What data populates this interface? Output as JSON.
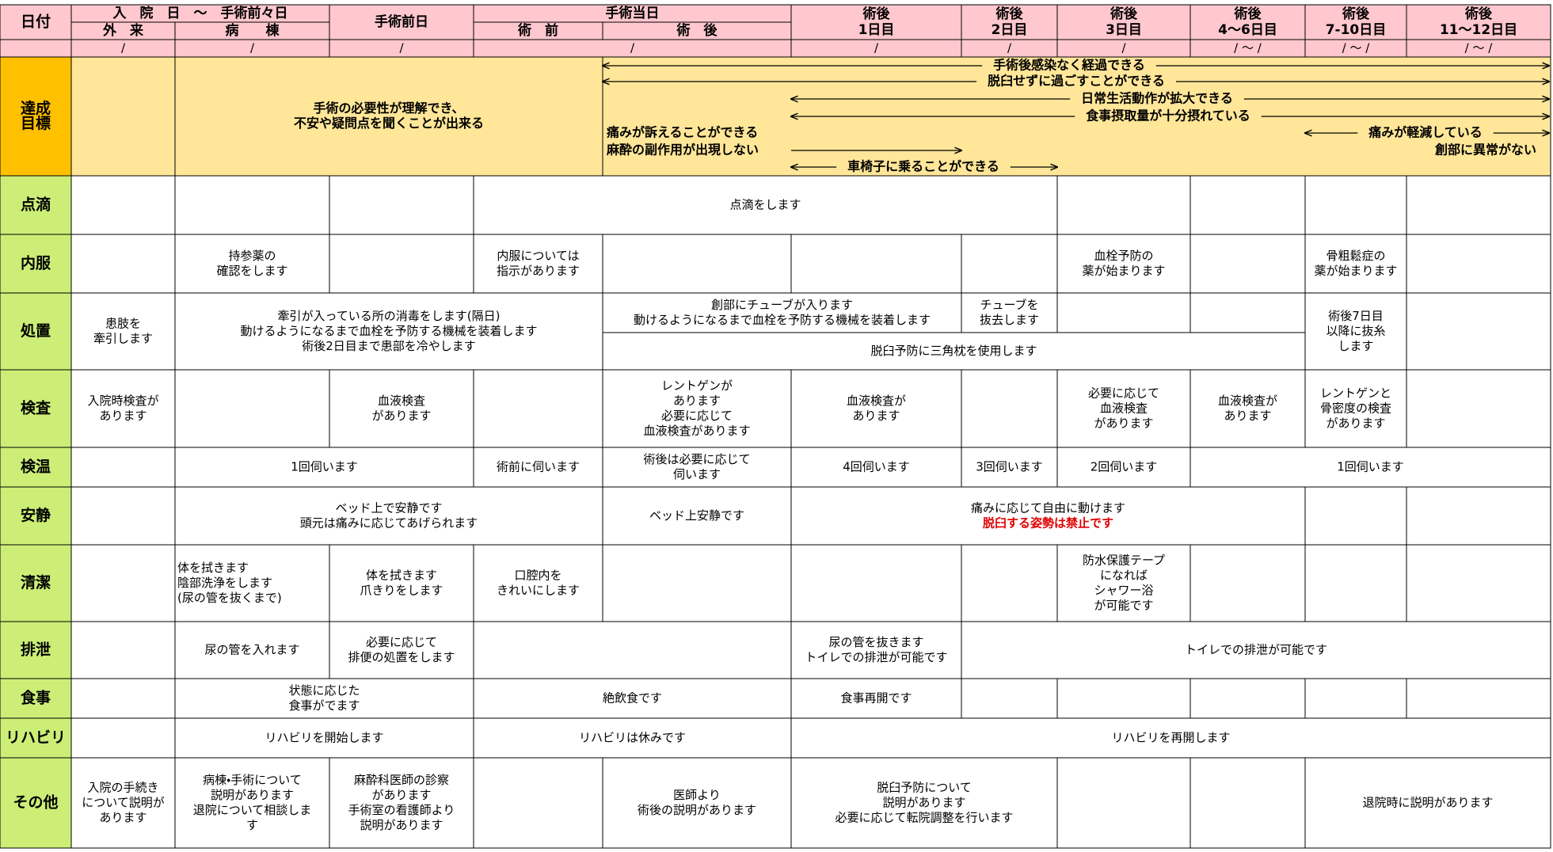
{
  "header": {
    "date_label": "日付",
    "cells": [
      {
        "lines": [
          "入　院　日　～　手術前々日"
        ]
      },
      {
        "lines": [
          "手術前日"
        ]
      },
      {
        "lines": [
          "手術当日"
        ]
      },
      {
        "lines": [
          "術後",
          "1日目"
        ]
      },
      {
        "lines": [
          "術後",
          "2日目"
        ]
      },
      {
        "lines": [
          "術後",
          "3日目"
        ]
      },
      {
        "lines": [
          "術後",
          "4～6日目"
        ]
      },
      {
        "lines": [
          "術後",
          "7-10日目"
        ]
      },
      {
        "lines": [
          "術後",
          "11～12日目"
        ]
      },
      {
        "lines": [
          "外　来"
        ]
      },
      {
        "lines": [
          "病　　棟"
        ]
      },
      {
        "lines": [
          "術　前"
        ]
      },
      {
        "lines": [
          "術　後"
        ]
      }
    ],
    "dates": [
      "/",
      "/",
      "/",
      "/",
      "/",
      "/",
      "/",
      "/ ～ /",
      "/ ～ /",
      "/ ～ /"
    ]
  },
  "goals": {
    "label": [
      "達成",
      "目標"
    ],
    "main": [
      "手術の必要性が理解でき、",
      "不安や疑問点を聞くことが出来る"
    ],
    "items": [
      "手術後感染なく経過できる",
      "脱臼せずに過ごすことができる",
      "日常生活動作が拡大できる",
      "食事摂取量が十分摂れている",
      "痛みが軽減している",
      "創部に異常がない",
      "痛みが訴えることができる",
      "麻酔の副作用が出現しない",
      "車椅子に乗ることができる"
    ]
  },
  "rows": [
    {
      "label": "点滴",
      "cells": [
        {
          "lines": [
            "点滴をします"
          ]
        }
      ]
    },
    {
      "label": "内服",
      "cells": [
        {
          "lines": [
            "持参薬の",
            "確認をします"
          ]
        },
        {
          "lines": [
            "内服については",
            "指示があります"
          ]
        },
        {
          "lines": [
            "血栓予防の",
            "薬が始まります"
          ]
        },
        {
          "lines": [
            "骨粗鬆症の",
            "薬が始まります"
          ]
        }
      ]
    },
    {
      "label": "処置",
      "cells": [
        {
          "lines": [
            "患肢を",
            "牽引します"
          ]
        },
        {
          "lines": [
            "牽引が入っている所の消毒をします(隔日)",
            "動けるようになるまで血栓を予防する機械を装着します",
            "術後2日目まで患部を冷やします"
          ]
        },
        {
          "lines": [
            "創部にチューブが入ります",
            "動けるようになるまで血栓を予防する機械を装着します"
          ]
        },
        {
          "lines": [
            "チューブを",
            "抜去します"
          ]
        },
        {
          "lines": [
            "脱臼予防に三角枕を使用します"
          ]
        },
        {
          "lines": [
            "術後7日目",
            "以降に抜糸",
            "します"
          ]
        }
      ]
    },
    {
      "label": "検査",
      "cells": [
        {
          "lines": [
            "入院時検査が",
            "あります"
          ]
        },
        {
          "lines": [
            "血液検査",
            "があります"
          ]
        },
        {
          "lines": [
            "レントゲンが",
            "あります",
            "必要に応じて",
            "血液検査があります"
          ]
        },
        {
          "lines": [
            "血液検査が",
            "あります"
          ]
        },
        {
          "lines": [
            "必要に応じて",
            "血液検査",
            "があります"
          ]
        },
        {
          "lines": [
            "血液検査が",
            "あります"
          ]
        },
        {
          "lines": [
            "レントゲンと",
            "骨密度の検査",
            "があります"
          ]
        }
      ]
    },
    {
      "label": "検温",
      "cells": [
        {
          "lines": [
            "1回伺います"
          ]
        },
        {
          "lines": [
            "術前に伺います"
          ]
        },
        {
          "lines": [
            "術後は必要に応じて",
            "伺います"
          ]
        },
        {
          "lines": [
            "4回伺います"
          ]
        },
        {
          "lines": [
            "3回伺います"
          ]
        },
        {
          "lines": [
            "2回伺います"
          ]
        },
        {
          "lines": [
            "1回伺います"
          ]
        }
      ]
    },
    {
      "label": "安静",
      "cells": [
        {
          "lines": [
            "ベッド上で安静です",
            "頭元は痛みに応じてあげられます"
          ]
        },
        {
          "lines": [
            "ベッド上安静です"
          ]
        },
        {
          "lines": [
            "痛みに応じて自由に動けます"
          ],
          "warning": "脱臼する姿勢は禁止です"
        }
      ]
    },
    {
      "label": "清潔",
      "cells": [
        {
          "lines": [
            "体を拭きます",
            "陰部洗浄をします",
            "(尿の管を抜くまで)"
          ]
        },
        {
          "lines": [
            "体を拭きます",
            "爪きりをします"
          ]
        },
        {
          "lines": [
            "口腔内を",
            "きれいにします"
          ]
        },
        {
          "lines": [
            "防水保護テープ",
            "になれば",
            "シャワー浴",
            "が可能です"
          ]
        }
      ]
    },
    {
      "label": "排泄",
      "cells": [
        {
          "lines": [
            "尿の管を入れます"
          ]
        },
        {
          "lines": [
            "必要に応じて",
            "排便の処置をします"
          ]
        },
        {
          "lines": [
            "尿の管を抜きます",
            "トイレでの排泄が可能です"
          ]
        },
        {
          "lines": [
            "トイレでの排泄が可能です"
          ]
        }
      ]
    },
    {
      "label": "食事",
      "cells": [
        {
          "lines": [
            "状態に応じた",
            "食事がでます"
          ]
        },
        {
          "lines": [
            "絶飲食です"
          ]
        },
        {
          "lines": [
            "食事再開です"
          ]
        }
      ]
    },
    {
      "label": "リハビリ",
      "cells": [
        {
          "lines": [
            "リハビリを開始します"
          ]
        },
        {
          "lines": [
            "リハビリは休みです"
          ]
        },
        {
          "lines": [
            "リハビリを再開します"
          ]
        }
      ]
    },
    {
      "label": "その他",
      "cells": [
        {
          "lines": [
            "入院の手続き",
            "について説明が",
            "あります"
          ]
        },
        {
          "lines": [
            "病棟・手術について",
            "説明があります",
            "退院について相談しま",
            "す"
          ]
        },
        {
          "lines": [
            "麻酔科医師の診察",
            "があります",
            "手術室の看護師より",
            "説明があります"
          ]
        },
        {
          "lines": [
            "医師より",
            "術後の説明があります"
          ]
        },
        {
          "lines": [
            "脱臼予防について",
            "説明があります",
            "必要に応じて転院調整を行います"
          ]
        },
        {
          "lines": [
            "退院時に説明があります"
          ]
        }
      ]
    }
  ]
}
